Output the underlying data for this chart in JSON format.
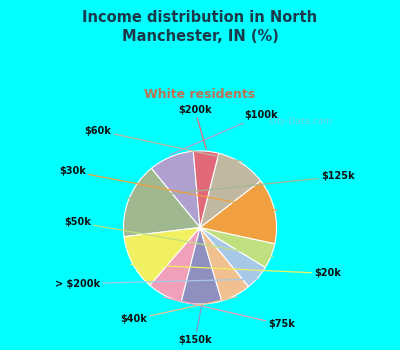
{
  "title": "Income distribution in North\nManchester, IN (%)",
  "subtitle": "White residents",
  "title_color": "#1a3a4a",
  "subtitle_color": "#c07050",
  "background_color": "#00ffff",
  "chart_bg_top": "#d8ede0",
  "chart_bg_bottom": "#ffffff",
  "watermark": "City-Data.com",
  "labels": [
    "$100k",
    "$125k",
    "$20k",
    "$75k",
    "$150k",
    "$40k",
    "> $200k",
    "$50k",
    "$30k",
    "$60k",
    "$200k"
  ],
  "values": [
    9,
    15,
    11,
    7,
    8,
    6,
    5,
    5,
    13,
    10,
    5
  ],
  "colors": [
    "#b0a0d0",
    "#a0b890",
    "#f0f060",
    "#f0a0b8",
    "#9090c0",
    "#f0c090",
    "#a8c8e8",
    "#c0e080",
    "#f0a040",
    "#c0b8a0",
    "#e06878"
  ],
  "startangle": 95,
  "figsize": [
    4.0,
    3.5
  ],
  "dpi": 100
}
